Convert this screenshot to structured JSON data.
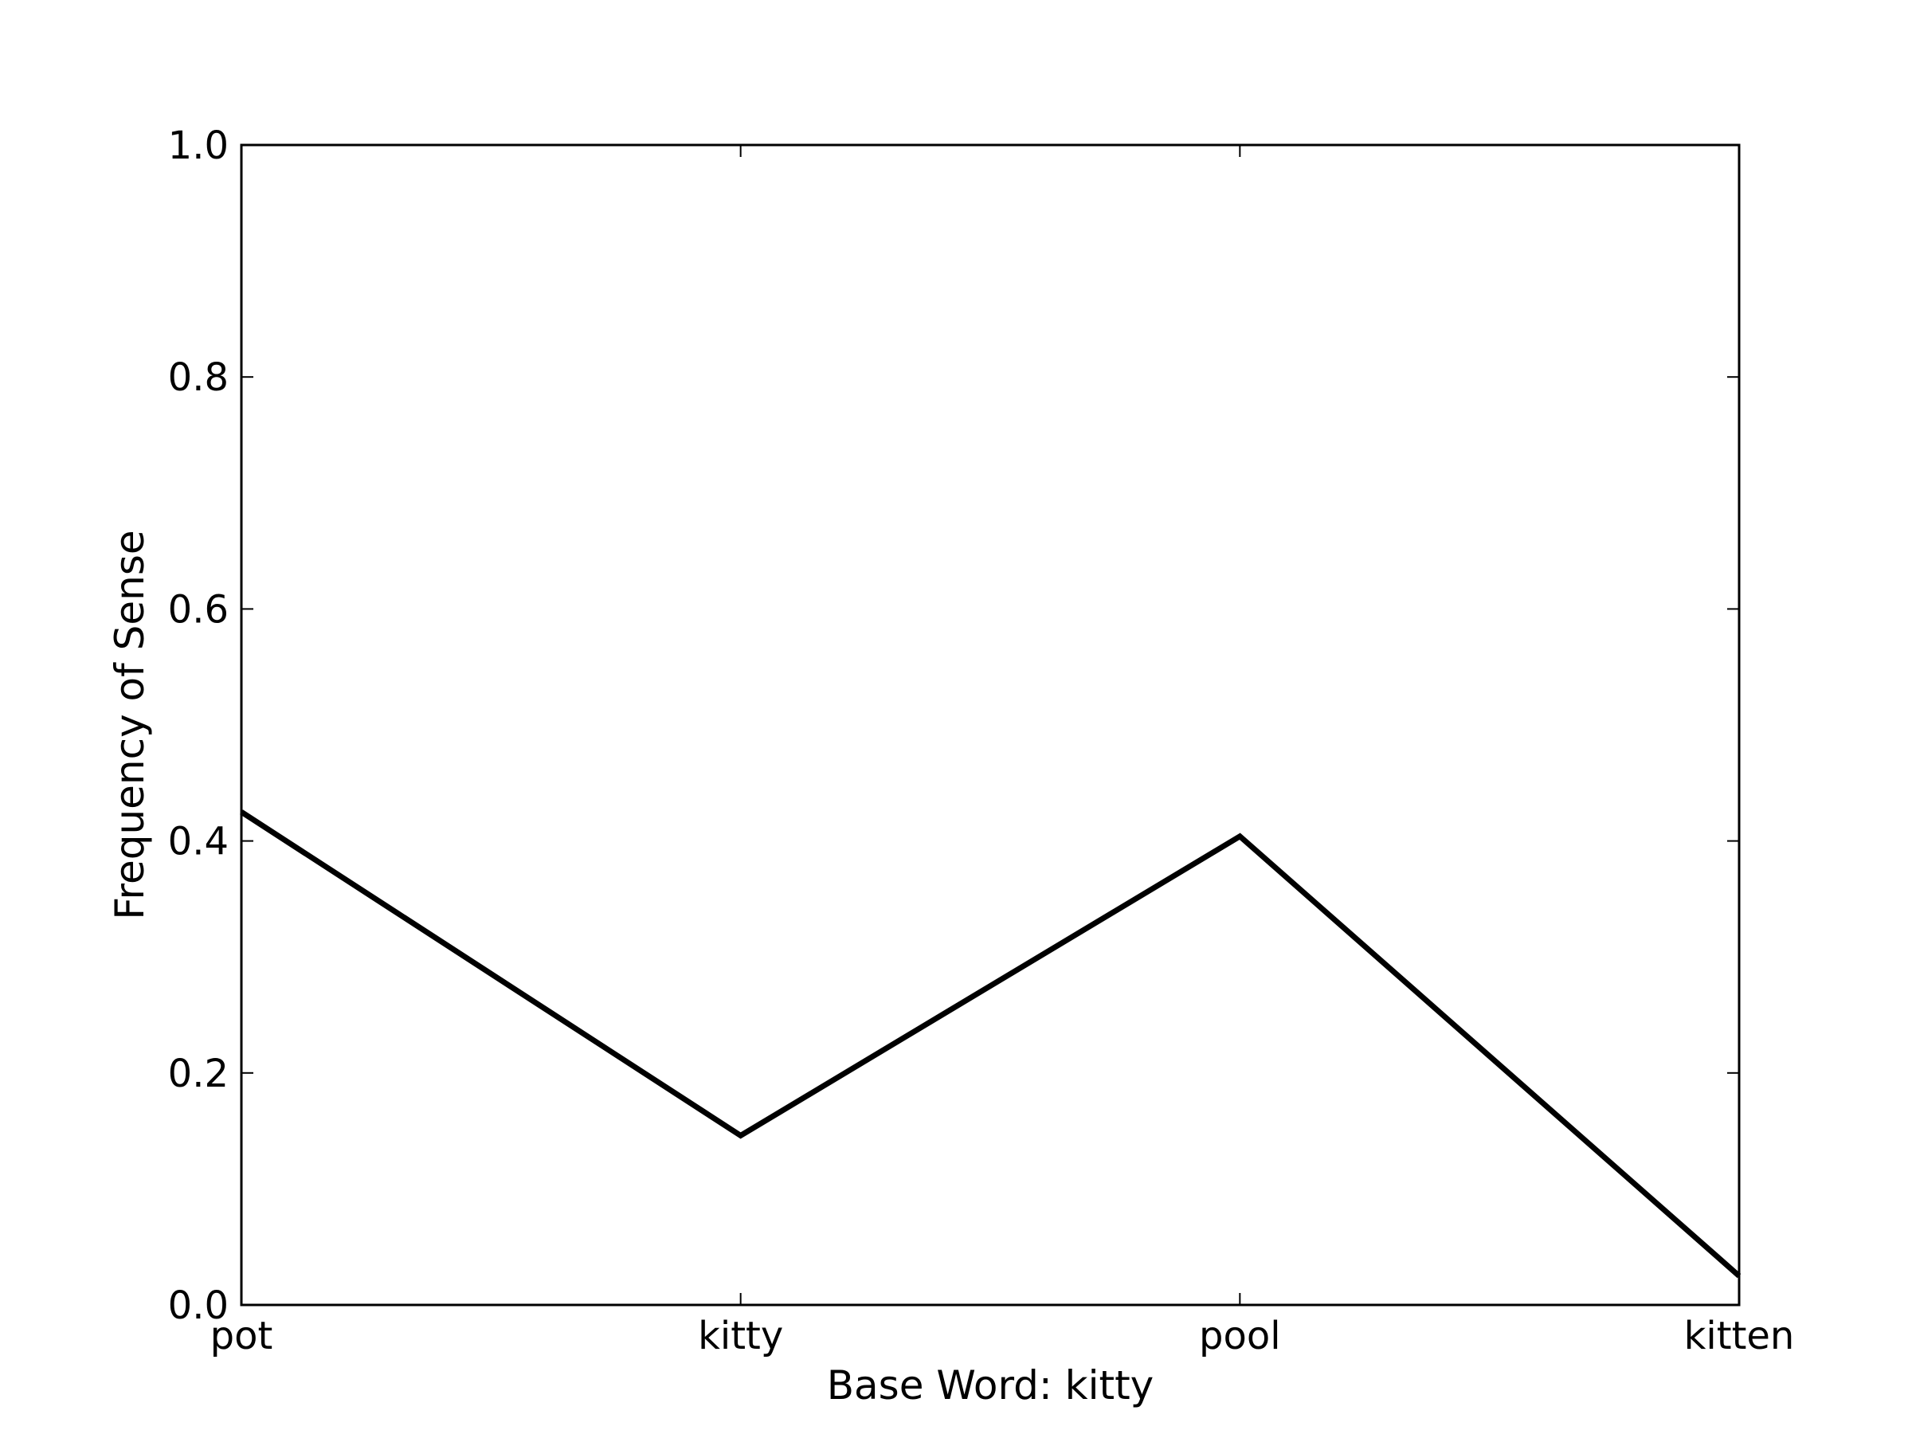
{
  "chart_data": {
    "type": "line",
    "title": "",
    "xlabel": "Base Word: kitty",
    "ylabel": "Frequency of Sense",
    "categories": [
      "pot",
      "kitty",
      "pool",
      "kitten"
    ],
    "series": [
      {
        "values": [
          0.425,
          0.146,
          0.404,
          0.025
        ]
      }
    ],
    "ylim": [
      0.0,
      1.0
    ],
    "yticks": [
      0.0,
      0.2,
      0.4,
      0.6,
      0.8,
      1.0
    ],
    "ytick_labels": [
      "0.0",
      "0.2",
      "0.4",
      "0.6",
      "0.8",
      "1.0"
    ],
    "grid": false,
    "legend": "none",
    "colors": {
      "line": "#000000",
      "axes": "#000000",
      "background": "#ffffff"
    }
  }
}
